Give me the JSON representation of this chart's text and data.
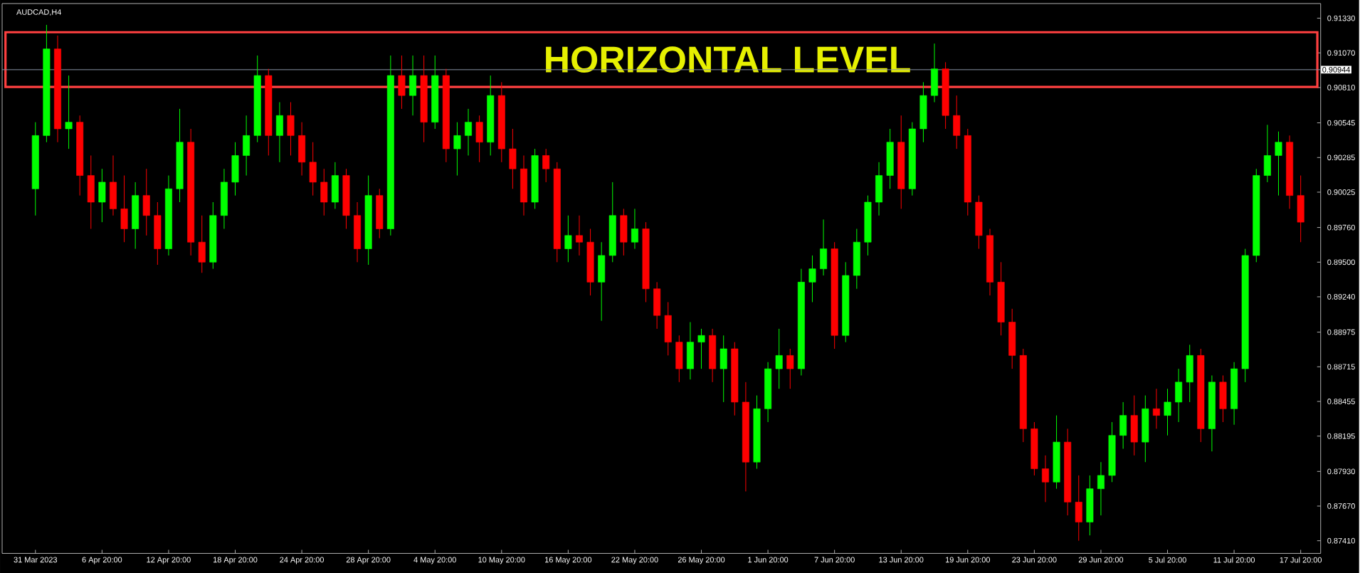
{
  "chart_data": {
    "type": "candlestick",
    "title": "AUDCAD,H4",
    "categories": [
      "31 Mar 2023",
      null,
      null,
      null,
      null,
      null,
      "6 Apr 20:00",
      null,
      null,
      null,
      null,
      null,
      "12 Apr 20:00",
      null,
      null,
      null,
      null,
      null,
      "18 Apr 20:00",
      null,
      null,
      null,
      null,
      null,
      "24 Apr 20:00",
      null,
      null,
      null,
      null,
      null,
      "28 Apr 20:00",
      null,
      null,
      null,
      null,
      null,
      "4 May 20:00",
      null,
      null,
      null,
      null,
      null,
      "10 May 20:00",
      null,
      null,
      null,
      null,
      null,
      "16 May 20:00",
      null,
      null,
      null,
      null,
      null,
      "22 May 20:00",
      null,
      null,
      null,
      null,
      null,
      "26 May 20:00",
      null,
      null,
      null,
      null,
      null,
      "1 Jun 20:00",
      null,
      null,
      null,
      null,
      null,
      "7 Jun 20:00",
      null,
      null,
      null,
      null,
      null,
      "13 Jun 20:00",
      null,
      null,
      null,
      null,
      null,
      "19 Jun 20:00",
      null,
      null,
      null,
      null,
      null,
      "23 Jun 20:00",
      null,
      null,
      null,
      null,
      null,
      "29 Jun 20:00",
      null,
      null,
      null,
      null,
      null,
      "5 Jul 20:00",
      null,
      null,
      null,
      null,
      null,
      "11 Jul 20:00",
      null,
      null,
      null,
      null,
      null,
      "17 Jul 20:00"
    ],
    "ohlc": [
      [
        0.9005,
        0.9055,
        0.8985,
        0.9045
      ],
      [
        0.9045,
        0.9128,
        0.904,
        0.911
      ],
      [
        0.911,
        0.912,
        0.904,
        0.905
      ],
      [
        0.905,
        0.909,
        0.9035,
        0.9055
      ],
      [
        0.9055,
        0.906,
        0.9,
        0.9015
      ],
      [
        0.9015,
        0.903,
        0.8975,
        0.8995
      ],
      [
        0.8995,
        0.902,
        0.898,
        0.901
      ],
      [
        0.901,
        0.903,
        0.8985,
        0.899
      ],
      [
        0.899,
        0.9015,
        0.8965,
        0.8975
      ],
      [
        0.8975,
        0.901,
        0.896,
        0.9
      ],
      [
        0.9,
        0.902,
        0.897,
        0.8985
      ],
      [
        0.8985,
        0.8995,
        0.8948,
        0.896
      ],
      [
        0.896,
        0.9015,
        0.8955,
        0.9005
      ],
      [
        0.9005,
        0.9065,
        0.8995,
        0.904
      ],
      [
        0.904,
        0.905,
        0.8955,
        0.8965
      ],
      [
        0.8965,
        0.8985,
        0.8942,
        0.895
      ],
      [
        0.895,
        0.8995,
        0.8945,
        0.8985
      ],
      [
        0.8985,
        0.902,
        0.8975,
        0.901
      ],
      [
        0.901,
        0.904,
        0.9,
        0.903
      ],
      [
        0.903,
        0.906,
        0.9015,
        0.9045
      ],
      [
        0.9045,
        0.9105,
        0.904,
        0.909
      ],
      [
        0.909,
        0.9095,
        0.903,
        0.9045
      ],
      [
        0.9045,
        0.907,
        0.9025,
        0.906
      ],
      [
        0.906,
        0.907,
        0.903,
        0.9045
      ],
      [
        0.9045,
        0.9055,
        0.9015,
        0.9025
      ],
      [
        0.9025,
        0.904,
        0.9,
        0.901
      ],
      [
        0.901,
        0.902,
        0.8985,
        0.8995
      ],
      [
        0.8995,
        0.9025,
        0.899,
        0.9015
      ],
      [
        0.9015,
        0.902,
        0.8975,
        0.8985
      ],
      [
        0.8985,
        0.8995,
        0.895,
        0.896
      ],
      [
        0.896,
        0.9015,
        0.8948,
        0.9
      ],
      [
        0.9,
        0.9005,
        0.8968,
        0.8975
      ],
      [
        0.8975,
        0.9105,
        0.897,
        0.909
      ],
      [
        0.909,
        0.9105,
        0.9065,
        0.9075
      ],
      [
        0.9075,
        0.9105,
        0.906,
        0.909
      ],
      [
        0.909,
        0.9105,
        0.904,
        0.9055
      ],
      [
        0.9055,
        0.9105,
        0.905,
        0.909
      ],
      [
        0.909,
        0.9095,
        0.9025,
        0.9035
      ],
      [
        0.9035,
        0.9055,
        0.9015,
        0.9045
      ],
      [
        0.9045,
        0.9065,
        0.903,
        0.9055
      ],
      [
        0.9055,
        0.906,
        0.9025,
        0.904
      ],
      [
        0.904,
        0.909,
        0.903,
        0.9075
      ],
      [
        0.9075,
        0.9085,
        0.9025,
        0.9035
      ],
      [
        0.9035,
        0.905,
        0.9005,
        0.902
      ],
      [
        0.902,
        0.903,
        0.8985,
        0.8995
      ],
      [
        0.8995,
        0.9035,
        0.899,
        0.903
      ],
      [
        0.903,
        0.9035,
        0.901,
        0.902
      ],
      [
        0.902,
        0.9025,
        0.895,
        0.896
      ],
      [
        0.896,
        0.8985,
        0.895,
        0.897
      ],
      [
        0.897,
        0.8985,
        0.8955,
        0.8965
      ],
      [
        0.8965,
        0.8975,
        0.8925,
        0.8935
      ],
      [
        0.8935,
        0.8965,
        0.8906,
        0.8955
      ],
      [
        0.8955,
        0.901,
        0.895,
        0.8985
      ],
      [
        0.8985,
        0.899,
        0.8955,
        0.8965
      ],
      [
        0.8965,
        0.899,
        0.896,
        0.8975
      ],
      [
        0.8975,
        0.898,
        0.892,
        0.893
      ],
      [
        0.893,
        0.8935,
        0.89,
        0.891
      ],
      [
        0.891,
        0.892,
        0.888,
        0.889
      ],
      [
        0.889,
        0.8895,
        0.886,
        0.887
      ],
      [
        0.887,
        0.8905,
        0.8862,
        0.889
      ],
      [
        0.889,
        0.89,
        0.887,
        0.8895
      ],
      [
        0.8895,
        0.89,
        0.886,
        0.887
      ],
      [
        0.887,
        0.8895,
        0.8845,
        0.8885
      ],
      [
        0.8885,
        0.889,
        0.8835,
        0.8845
      ],
      [
        0.8845,
        0.886,
        0.8778,
        0.88
      ],
      [
        0.88,
        0.885,
        0.8795,
        0.884
      ],
      [
        0.884,
        0.8875,
        0.883,
        0.887
      ],
      [
        0.887,
        0.89,
        0.8855,
        0.888
      ],
      [
        0.888,
        0.8885,
        0.8855,
        0.887
      ],
      [
        0.887,
        0.8945,
        0.8865,
        0.8935
      ],
      [
        0.8935,
        0.8955,
        0.892,
        0.8945
      ],
      [
        0.8945,
        0.8982,
        0.894,
        0.896
      ],
      [
        0.896,
        0.8965,
        0.8885,
        0.8895
      ],
      [
        0.8895,
        0.895,
        0.889,
        0.894
      ],
      [
        0.894,
        0.8975,
        0.893,
        0.8965
      ],
      [
        0.8965,
        0.9,
        0.8955,
        0.8995
      ],
      [
        0.8995,
        0.9025,
        0.8985,
        0.9015
      ],
      [
        0.9015,
        0.905,
        0.9005,
        0.904
      ],
      [
        0.904,
        0.906,
        0.899,
        0.9005
      ],
      [
        0.9005,
        0.9055,
        0.9,
        0.905
      ],
      [
        0.905,
        0.9085,
        0.904,
        0.9075
      ],
      [
        0.9075,
        0.9114,
        0.907,
        0.9095
      ],
      [
        0.9095,
        0.91,
        0.905,
        0.906
      ],
      [
        0.906,
        0.9075,
        0.9035,
        0.9045
      ],
      [
        0.9045,
        0.905,
        0.8985,
        0.8995
      ],
      [
        0.8995,
        0.9,
        0.896,
        0.897
      ],
      [
        0.897,
        0.8975,
        0.8925,
        0.8935
      ],
      [
        0.8935,
        0.895,
        0.8895,
        0.8905
      ],
      [
        0.8905,
        0.8915,
        0.887,
        0.888
      ],
      [
        0.888,
        0.8885,
        0.8815,
        0.8825
      ],
      [
        0.8825,
        0.883,
        0.879,
        0.8795
      ],
      [
        0.8795,
        0.8805,
        0.877,
        0.8785
      ],
      [
        0.8785,
        0.8835,
        0.878,
        0.8815
      ],
      [
        0.8815,
        0.8825,
        0.876,
        0.877
      ],
      [
        0.877,
        0.879,
        0.8741,
        0.8755
      ],
      [
        0.8755,
        0.879,
        0.8745,
        0.878
      ],
      [
        0.878,
        0.88,
        0.876,
        0.879
      ],
      [
        0.879,
        0.883,
        0.8785,
        0.882
      ],
      [
        0.882,
        0.8845,
        0.881,
        0.8835
      ],
      [
        0.8835,
        0.885,
        0.8805,
        0.8815
      ],
      [
        0.8815,
        0.885,
        0.88,
        0.884
      ],
      [
        0.884,
        0.8855,
        0.8825,
        0.8835
      ],
      [
        0.8835,
        0.8855,
        0.882,
        0.8845
      ],
      [
        0.8845,
        0.887,
        0.883,
        0.886
      ],
      [
        0.886,
        0.8888,
        0.8845,
        0.888
      ],
      [
        0.888,
        0.8885,
        0.8815,
        0.8825
      ],
      [
        0.8825,
        0.8865,
        0.8808,
        0.886
      ],
      [
        0.886,
        0.8865,
        0.883,
        0.884
      ],
      [
        0.884,
        0.8875,
        0.8828,
        0.887
      ],
      [
        0.887,
        0.896,
        0.886,
        0.8955
      ],
      [
        0.8955,
        0.902,
        0.895,
        0.9015
      ],
      [
        0.9015,
        0.9053,
        0.901,
        0.903
      ],
      [
        0.903,
        0.9048,
        0.9,
        0.904
      ],
      [
        0.904,
        0.9045,
        0.899,
        0.9
      ],
      [
        0.9,
        0.9015,
        0.8965,
        0.898
      ]
    ],
    "colors": [
      "#00ff00",
      "#00ff00",
      "#ff0000",
      "#00ff00",
      "#ff0000",
      "#ff0000",
      "#00ff00",
      "#ff0000",
      "#ff0000",
      "#00ff00",
      "#ff0000",
      "#ff0000",
      "#00ff00",
      "#00ff00",
      "#ff0000",
      "#ff0000",
      "#00ff00",
      "#00ff00",
      "#00ff00",
      "#00ff00",
      "#00ff00",
      "#ff0000",
      "#00ff00",
      "#ff0000",
      "#ff0000",
      "#ff0000",
      "#ff0000",
      "#00ff00",
      "#ff0000",
      "#ff0000",
      "#00ff00",
      "#ff0000",
      "#00ff00",
      "#ff0000",
      "#00ff00",
      "#ff0000",
      "#00ff00",
      "#ff0000",
      "#00ff00",
      "#00ff00",
      "#ff0000",
      "#00ff00",
      "#ff0000",
      "#ff0000",
      "#ff0000",
      "#00ff00",
      "#ff0000",
      "#ff0000",
      "#00ff00",
      "#ff0000",
      "#ff0000",
      "#00ff00",
      "#00ff00",
      "#ff0000",
      "#00ff00",
      "#ff0000",
      "#ff0000",
      "#ff0000",
      "#ff0000",
      "#00ff00",
      "#00ff00",
      "#ff0000",
      "#00ff00",
      "#ff0000",
      "#ff0000",
      "#00ff00",
      "#00ff00",
      "#00ff00",
      "#ff0000",
      "#00ff00",
      "#00ff00",
      "#00ff00",
      "#ff0000",
      "#00ff00",
      "#00ff00",
      "#00ff00",
      "#00ff00",
      "#00ff00",
      "#ff0000",
      "#00ff00",
      "#00ff00",
      "#00ff00",
      "#ff0000",
      "#ff0000",
      "#ff0000",
      "#ff0000",
      "#ff0000",
      "#ff0000",
      "#ff0000",
      "#ff0000",
      "#ff0000",
      "#ff0000",
      "#00ff00",
      "#ff0000",
      "#ff0000",
      "#00ff00",
      "#00ff00",
      "#00ff00",
      "#00ff00",
      "#ff0000",
      "#00ff00",
      "#ff0000",
      "#00ff00",
      "#00ff00",
      "#00ff00",
      "#ff0000",
      "#00ff00",
      "#ff0000",
      "#00ff00",
      "#00ff00",
      "#00ff00",
      "#00ff00",
      "#00ff00",
      "#ff0000",
      "#ff0000"
    ],
    "ylim": [
      0.87315,
      0.9144
    ],
    "yticks": [
      {
        "value": 0.9133,
        "label": "0.91330"
      },
      {
        "value": 0.9107,
        "label": "0.91070"
      },
      {
        "value": 0.9081,
        "label": "0.90810"
      },
      {
        "value": 0.90545,
        "label": "0.90545"
      },
      {
        "value": 0.90285,
        "label": "0.90285"
      },
      {
        "value": 0.90025,
        "label": "0.90025"
      },
      {
        "value": 0.8976,
        "label": "0.89760"
      },
      {
        "value": 0.895,
        "label": "0.89500"
      },
      {
        "value": 0.8924,
        "label": "0.89240"
      },
      {
        "value": 0.88975,
        "label": "0.88975"
      },
      {
        "value": 0.88715,
        "label": "0.88715"
      },
      {
        "value": 0.88455,
        "label": "0.88455"
      },
      {
        "value": 0.88195,
        "label": "0.88195"
      },
      {
        "value": 0.8793,
        "label": "0.87930"
      },
      {
        "value": 0.8767,
        "label": "0.87670"
      },
      {
        "value": 0.8741,
        "label": "0.87410"
      }
    ],
    "ref_lines": [
      {
        "axis": "y",
        "value": 0.90944,
        "label": "0.90944",
        "color": "#8a94a6"
      }
    ],
    "bands": [
      {
        "axis": "y",
        "from": 0.90815,
        "to": 0.91225,
        "label": "HORIZONTAL LEVEL",
        "color": "#ff4040"
      }
    ],
    "grid": false
  }
}
